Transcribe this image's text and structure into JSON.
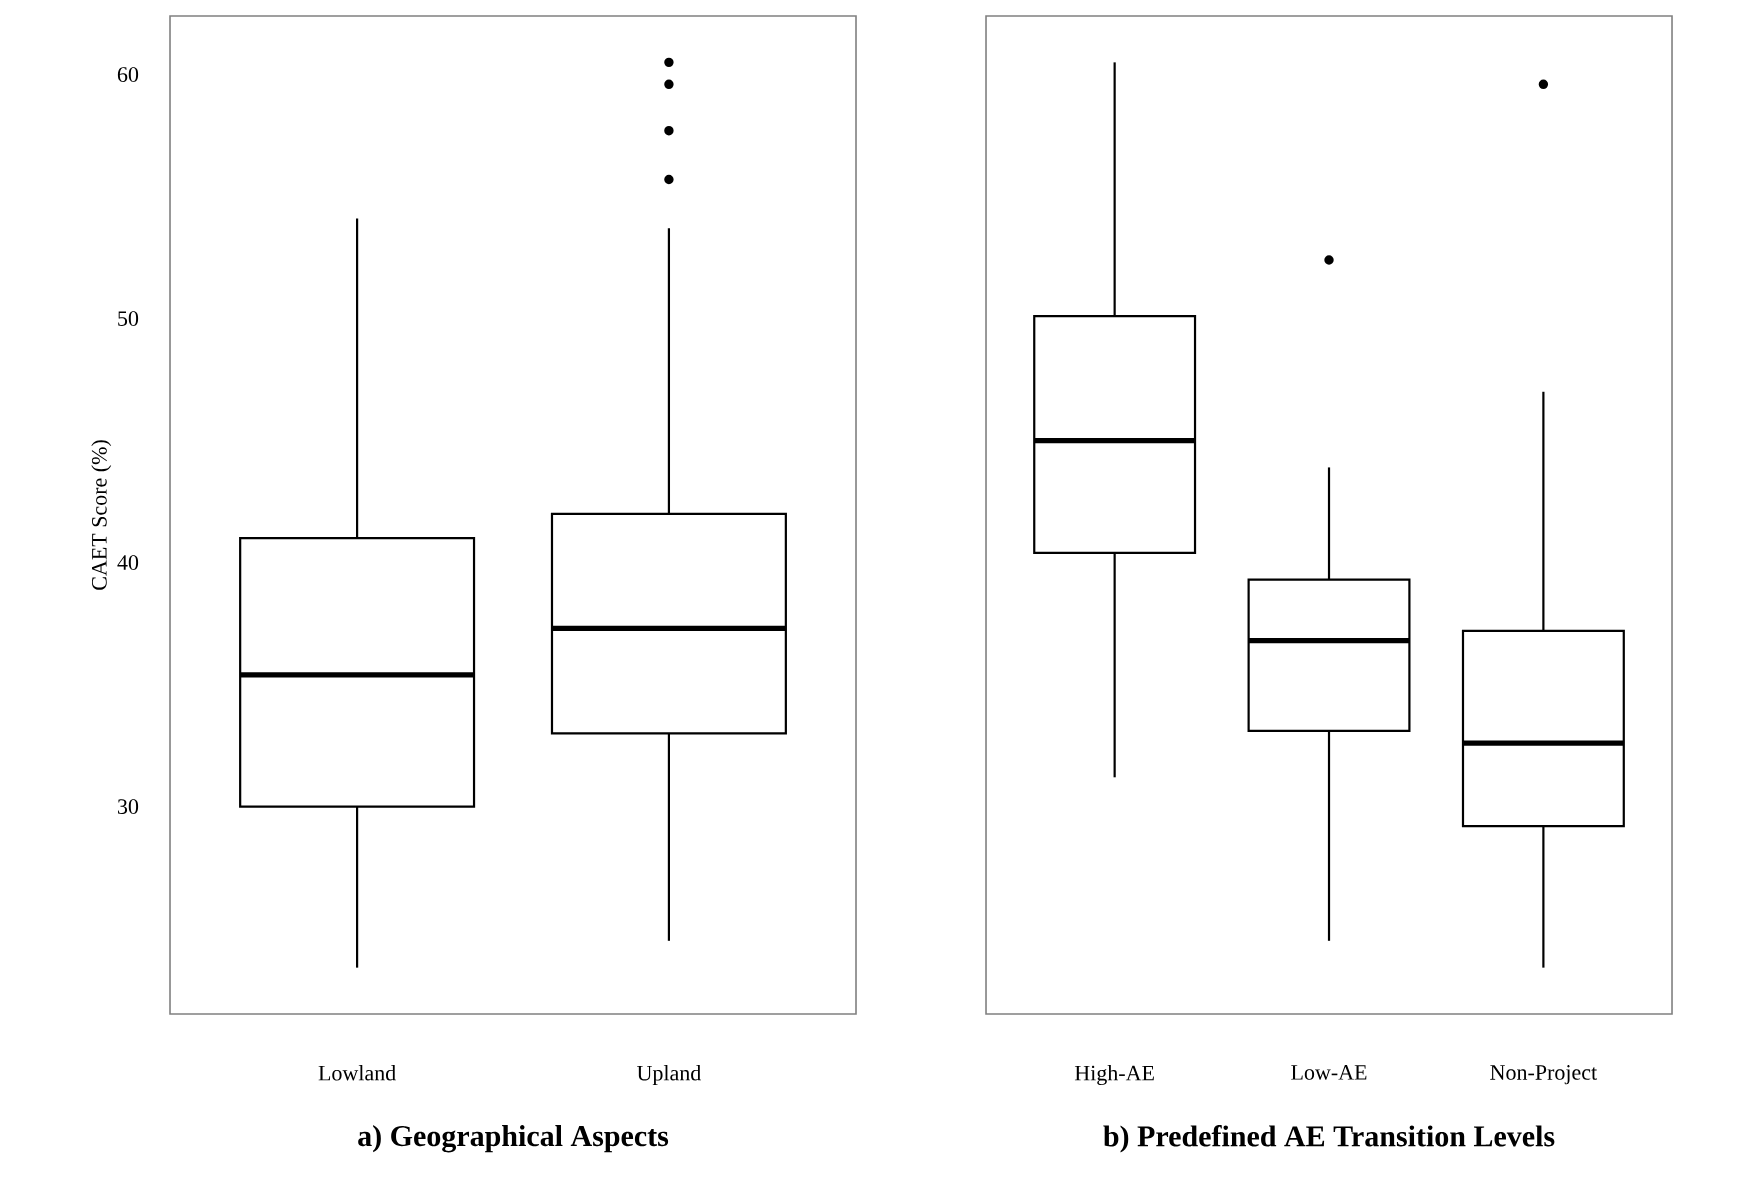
{
  "chart_data": [
    {
      "type": "box",
      "title": "a) Geographical Aspects",
      "ylabel": "CAET Score (%)",
      "categories": [
        "Lowland",
        "Upland"
      ],
      "ylim": [
        21.5,
        62.4
      ],
      "yticks": [
        30,
        40,
        50,
        60
      ],
      "grid": false,
      "boxes": [
        {
          "low": 23.4,
          "q1": 30.0,
          "median": 35.4,
          "q3": 41.0,
          "high": 54.1
        },
        {
          "low": 24.5,
          "q1": 33.0,
          "median": 37.3,
          "q3": 42.0,
          "high": 53.7,
          "outliers": [
            55.7,
            57.7,
            59.6,
            60.5
          ]
        }
      ]
    },
    {
      "type": "box",
      "title": "b) Predefined AE Transition Levels",
      "categories": [
        "High-AE",
        "Low-AE",
        "Non-Project"
      ],
      "ylim": [
        21.5,
        62.4
      ],
      "yticks": [
        30,
        40,
        50,
        60
      ],
      "tick_labels": "x",
      "grid": false,
      "boxes": [
        {
          "low": 31.2,
          "q1": 40.4,
          "median": 45.0,
          "q3": 50.1,
          "high": 60.5
        },
        {
          "low": 24.5,
          "q1": 33.1,
          "median": 36.8,
          "q3": 39.3,
          "high": 43.9,
          "outliers": [
            52.4
          ]
        },
        {
          "low": 23.4,
          "q1": 29.2,
          "median": 32.6,
          "q3": 37.2,
          "high": 47.0,
          "outliers": [
            59.6
          ]
        }
      ]
    }
  ]
}
